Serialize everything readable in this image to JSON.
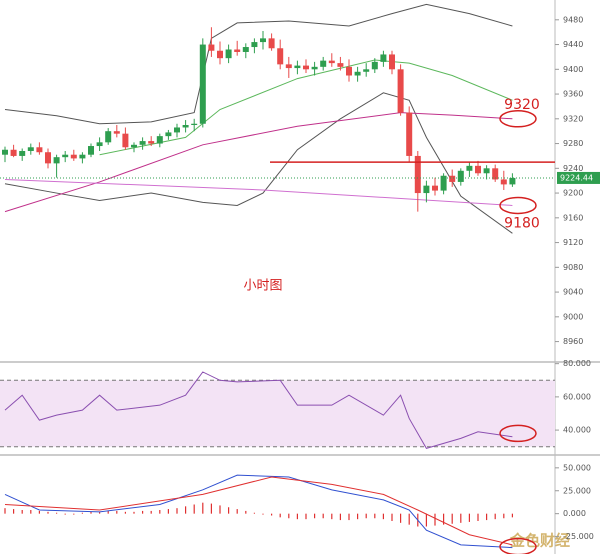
{
  "chart_data": [
    {
      "type": "candlestick",
      "label": "小时图",
      "watermark": "金色财经",
      "ylim": [
        8927,
        9512
      ],
      "yticks": [
        9480,
        9440,
        9400,
        9360,
        9320,
        9280,
        9240,
        9200,
        9160,
        9120,
        9080,
        9040,
        9000,
        8960
      ],
      "colors": {
        "up": "#2e9e4f",
        "down": "#e84a4a"
      },
      "open": [
        9262,
        9270,
        9260,
        9268,
        9274,
        9266,
        9248,
        9258,
        9262,
        9256,
        9262,
        9276,
        9282,
        9300,
        9296,
        9274,
        9278,
        9284,
        9280,
        9292,
        9298,
        9306,
        9310,
        9312,
        9440,
        9430,
        9418,
        9432,
        9428,
        9436,
        9444,
        9450,
        9434,
        9408,
        9402,
        9406,
        9400,
        9404,
        9414,
        9410,
        9404,
        9390,
        9396,
        9400,
        9412,
        9424,
        9400,
        9330,
        9260,
        9200,
        9212,
        9204,
        9228,
        9218,
        9236,
        9244,
        9232,
        9240,
        9222,
        9214
      ],
      "high": [
        9275,
        9278,
        9272,
        9280,
        9282,
        9272,
        9262,
        9268,
        9270,
        9266,
        9280,
        9290,
        9305,
        9310,
        9306,
        9282,
        9290,
        9292,
        9296,
        9302,
        9312,
        9318,
        9320,
        9450,
        9468,
        9445,
        9440,
        9446,
        9442,
        9450,
        9462,
        9458,
        9448,
        9420,
        9414,
        9416,
        9412,
        9420,
        9426,
        9420,
        9416,
        9404,
        9410,
        9418,
        9430,
        9430,
        9408,
        9340,
        9268,
        9220,
        9225,
        9232,
        9238,
        9240,
        9250,
        9252,
        9245,
        9246,
        9236,
        9232
      ],
      "low": [
        9250,
        9258,
        9252,
        9262,
        9262,
        9240,
        9225,
        9250,
        9252,
        9248,
        9258,
        9268,
        9278,
        9290,
        9270,
        9266,
        9270,
        9276,
        9274,
        9286,
        9290,
        9298,
        9300,
        9306,
        9420,
        9408,
        9410,
        9422,
        9418,
        9426,
        9432,
        9430,
        9400,
        9386,
        9392,
        9394,
        9390,
        9398,
        9404,
        9398,
        9380,
        9380,
        9388,
        9394,
        9404,
        9392,
        9325,
        9250,
        9170,
        9185,
        9196,
        9198,
        9210,
        9212,
        9226,
        9228,
        9222,
        9218,
        9205,
        9210
      ],
      "close": [
        9270,
        9260,
        9268,
        9274,
        9266,
        9248,
        9258,
        9262,
        9256,
        9262,
        9276,
        9282,
        9300,
        9296,
        9274,
        9278,
        9284,
        9280,
        9292,
        9298,
        9306,
        9310,
        9312,
        9440,
        9430,
        9418,
        9432,
        9428,
        9436,
        9444,
        9450,
        9434,
        9408,
        9402,
        9406,
        9400,
        9404,
        9414,
        9410,
        9404,
        9390,
        9396,
        9400,
        9412,
        9424,
        9400,
        9330,
        9260,
        9200,
        9212,
        9204,
        9228,
        9218,
        9236,
        9244,
        9232,
        9240,
        9222,
        9214,
        9224.44
      ],
      "series": [
        {
          "color": "#555555",
          "x": [
            0,
            6,
            11,
            17,
            22,
            24,
            27,
            33,
            40,
            45,
            49,
            54,
            59
          ],
          "values": [
            9335,
            9325,
            9312,
            9315,
            9330,
            9450,
            9475,
            9478,
            9470,
            9490,
            9505,
            9490,
            9470
          ]
        },
        {
          "color": "#555555",
          "x": [
            0,
            6,
            11,
            17,
            23,
            27,
            30,
            34,
            39,
            44,
            47,
            49,
            53,
            59
          ],
          "values": [
            9215,
            9200,
            9188,
            9200,
            9185,
            9180,
            9200,
            9270,
            9320,
            9362,
            9350,
            9290,
            9195,
            9135
          ]
        },
        {
          "color": "#c0308a",
          "x": [
            0,
            11,
            23,
            34,
            46,
            52,
            59
          ],
          "values": [
            9170,
            9218,
            9278,
            9308,
            9330,
            9326,
            9320
          ]
        },
        {
          "color": "#5cb85c",
          "x": [
            11,
            21,
            25,
            34,
            43,
            47,
            52,
            59
          ],
          "values": [
            9262,
            9290,
            9335,
            9385,
            9415,
            9410,
            9390,
            9350
          ]
        },
        {
          "color": "#d070d0",
          "x": [
            0,
            30,
            59
          ],
          "values": [
            9222,
            9205,
            9180
          ]
        }
      ],
      "level_line": {
        "value": 9250,
        "color": "#d42020"
      },
      "last_price": 9224.44,
      "annotations": [
        9320,
        9180
      ]
    },
    {
      "type": "line",
      "ylim": [
        25,
        81
      ],
      "yticks": [
        {
          "value": 80,
          "label": "80.000"
        },
        {
          "value": 60,
          "label": "60.000"
        },
        {
          "value": 40,
          "label": "40.000"
        }
      ],
      "bands": [
        70,
        30
      ],
      "series": [
        {
          "color": "#8a4fb0",
          "x": [
            0,
            2,
            4,
            6,
            9,
            11,
            13,
            18,
            21,
            23,
            25,
            27,
            32,
            34,
            38,
            40,
            44,
            46,
            47,
            49,
            53,
            55,
            59
          ],
          "values": [
            52,
            61,
            46,
            49,
            52,
            61,
            52,
            55,
            61,
            75,
            70,
            69,
            70,
            55,
            55,
            61,
            49,
            61,
            47,
            29,
            35,
            39,
            36
          ]
        }
      ],
      "annotations": [
        38
      ]
    },
    {
      "type": "macd",
      "ylim": [
        -44,
        64
      ],
      "yticks": [
        {
          "value": 50,
          "label": "50.000"
        },
        {
          "value": 25,
          "label": "25.000"
        },
        {
          "value": 0,
          "label": "0.000"
        },
        {
          "value": -25,
          "label": "-25.000"
        }
      ],
      "series": [
        {
          "color": "#3050d0",
          "x": [
            0,
            4,
            11,
            18,
            23,
            27,
            33,
            38,
            44,
            47,
            49,
            53,
            59
          ],
          "values": [
            21,
            4,
            2,
            10,
            26,
            42,
            40,
            26,
            15,
            4,
            -18,
            -34,
            -37
          ]
        },
        {
          "color": "#e03030",
          "x": [
            0,
            11,
            23,
            31,
            38,
            44,
            48,
            54,
            59
          ],
          "values": [
            10,
            4,
            21,
            40,
            32,
            21,
            4,
            -23,
            -34
          ]
        }
      ],
      "histogram": {
        "color": "#e03030",
        "values": [
          6,
          5,
          4,
          4,
          3,
          2,
          1,
          -1,
          -1,
          1,
          2,
          2,
          3,
          3,
          2,
          2,
          3,
          3,
          4,
          5,
          6,
          8,
          10,
          12,
          11,
          9,
          7,
          5,
          3,
          1,
          -1,
          -2,
          -4,
          -5,
          -6,
          -6,
          -5,
          -5,
          -6,
          -7,
          -7,
          -6,
          -5,
          -5,
          -6,
          -8,
          -10,
          -12,
          -14,
          -14,
          -13,
          -12,
          -11,
          -10,
          -9,
          -8,
          -7,
          -6,
          -5,
          -4
        ]
      },
      "annotations": [
        -36
      ]
    }
  ]
}
